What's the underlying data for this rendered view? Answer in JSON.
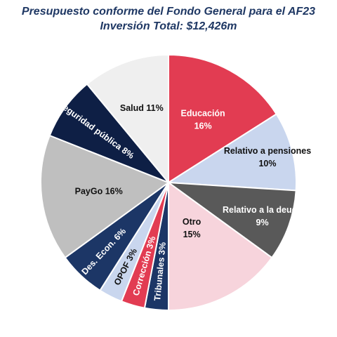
{
  "chart_data": {
    "type": "pie",
    "title": "Presupuesto conforme del Fondo General para el AF23",
    "subtitle": "Inversión Total: $12,426m",
    "slices": [
      {
        "label": "Educación",
        "value": 16,
        "value_label": "16%",
        "color": "#e23c52",
        "text_color": "#ffffff"
      },
      {
        "label": "Relativo a pensiones",
        "value": 10,
        "value_label": "10%",
        "color": "#c9d6ee",
        "text_color": "#111111"
      },
      {
        "label": "Relativo a la deuda",
        "value": 9,
        "value_label": "9%",
        "color": "#595959",
        "text_color": "#ffffff"
      },
      {
        "label": "Otro",
        "value": 15,
        "value_label": "15%",
        "color": "#f7d4dc",
        "text_color": "#111111"
      },
      {
        "label": "Tribunales",
        "value": 3,
        "value_label": "3%",
        "color": "#1c3666",
        "text_color": "#ffffff"
      },
      {
        "label": "Corrección",
        "value": 3,
        "value_label": "3%",
        "color": "#e23c52",
        "text_color": "#ffffff"
      },
      {
        "label": "OPOF",
        "value": 3,
        "value_label": "3%",
        "color": "#c9d6ee",
        "text_color": "#111111"
      },
      {
        "label": "Des. Econ.",
        "value": 6,
        "value_label": "6%",
        "color": "#1c3666",
        "text_color": "#ffffff"
      },
      {
        "label": "PayGo",
        "value": 16,
        "value_label": "16%",
        "color": "#bfbfbf",
        "text_color": "#111111"
      },
      {
        "label": "Seguridad pública",
        "value": 8,
        "value_label": "8%",
        "color": "#0e1f45",
        "text_color": "#ffffff"
      },
      {
        "label": "Salud",
        "value": 11,
        "value_label": "11%",
        "color": "#efefef",
        "text_color": "#111111"
      }
    ]
  }
}
